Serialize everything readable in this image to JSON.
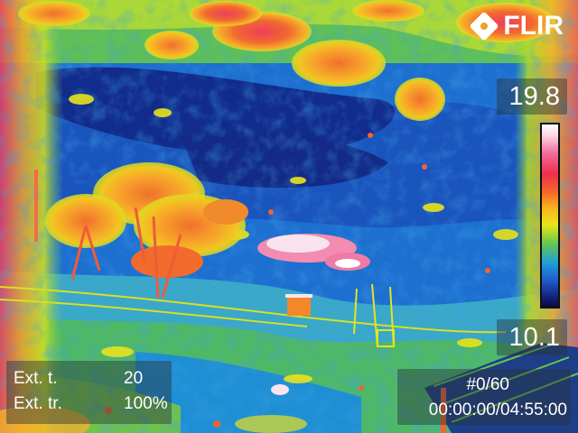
{
  "logo": {
    "text": "FLIR"
  },
  "scale": {
    "max": "19.8",
    "min": "10.1",
    "palette": [
      "#ffffff",
      "#f26a9c",
      "#ed2f4c",
      "#f4652a",
      "#f9b41f",
      "#e9e618",
      "#69c84a",
      "#1e9fd8",
      "#1f58c8",
      "#12207a"
    ]
  },
  "parameters": [
    {
      "label": "Ext. t.",
      "value": "20"
    },
    {
      "label": "Ext. tr.",
      "value": "100%"
    }
  ],
  "playback": {
    "frame": "#0/60",
    "time": "00:00:00/04:55:00"
  }
}
